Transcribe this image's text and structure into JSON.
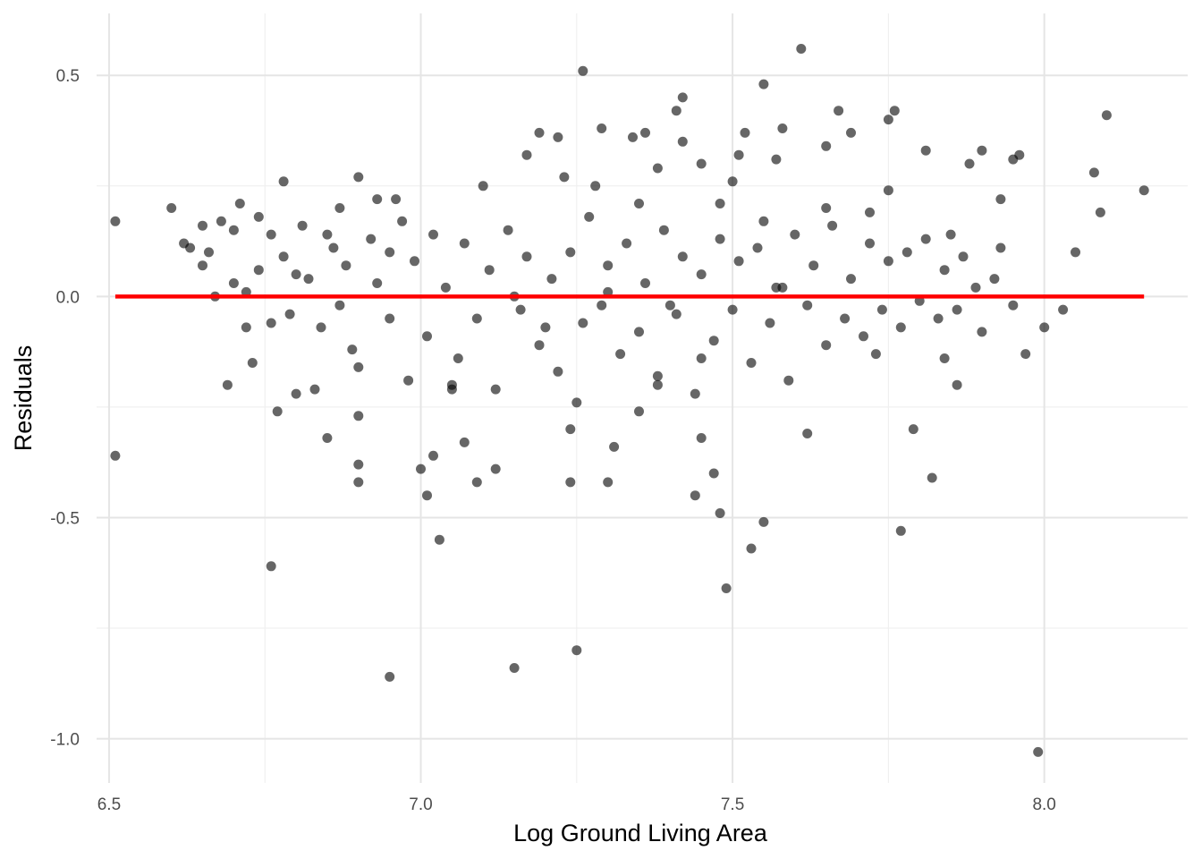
{
  "chart_data": {
    "type": "scatter",
    "title": "",
    "xlabel": "Log Ground Living Area",
    "ylabel": "Residuals",
    "xlim": [
      6.48,
      8.23
    ],
    "ylim": [
      -1.1,
      0.64
    ],
    "x_ticks": [
      6.5,
      7.0,
      7.5,
      8.0
    ],
    "x_tick_labels": [
      "6.5",
      "7.0",
      "7.5",
      "8.0"
    ],
    "y_ticks": [
      -1.0,
      -0.5,
      0.0,
      0.5
    ],
    "y_tick_labels": [
      "-1.0",
      "-0.5",
      "0.0",
      "0.5"
    ],
    "grid": true,
    "legend": "none",
    "point_color": "#000000",
    "point_opacity": 0.6,
    "reference_line": {
      "y": 0.0,
      "x_range": [
        6.51,
        8.16
      ],
      "color": "#ff0000"
    },
    "series": [
      {
        "points": [
          [
            6.51,
            0.17
          ],
          [
            6.51,
            -0.36
          ],
          [
            6.6,
            0.2
          ],
          [
            6.63,
            0.11
          ],
          [
            6.65,
            0.16
          ],
          [
            6.65,
            0.07
          ],
          [
            6.67,
            0.0
          ],
          [
            6.69,
            -0.2
          ],
          [
            6.7,
            0.15
          ],
          [
            6.71,
            0.21
          ],
          [
            6.72,
            -0.07
          ],
          [
            6.73,
            -0.15
          ],
          [
            6.74,
            0.18
          ],
          [
            6.76,
            -0.61
          ],
          [
            6.77,
            -0.26
          ],
          [
            6.78,
            0.26
          ],
          [
            6.8,
            -0.22
          ],
          [
            6.83,
            -0.21
          ],
          [
            6.85,
            -0.32
          ],
          [
            6.87,
            0.2
          ],
          [
            6.89,
            -0.12
          ],
          [
            6.9,
            0.27
          ],
          [
            6.9,
            -0.27
          ],
          [
            6.9,
            -0.38
          ],
          [
            6.9,
            -0.42
          ],
          [
            6.93,
            0.22
          ],
          [
            6.95,
            -0.86
          ],
          [
            6.96,
            0.22
          ],
          [
            6.98,
            -0.19
          ],
          [
            7.0,
            -0.39
          ],
          [
            7.01,
            -0.45
          ],
          [
            7.02,
            -0.36
          ],
          [
            7.03,
            -0.55
          ],
          [
            7.05,
            -0.21
          ],
          [
            7.07,
            -0.33
          ],
          [
            7.09,
            -0.42
          ],
          [
            7.1,
            0.25
          ],
          [
            7.12,
            -0.39
          ],
          [
            7.15,
            -0.84
          ],
          [
            7.17,
            0.32
          ],
          [
            7.19,
            0.37
          ],
          [
            7.22,
            0.36
          ],
          [
            7.23,
            0.27
          ],
          [
            7.24,
            -0.3
          ],
          [
            7.24,
            -0.42
          ],
          [
            7.25,
            -0.8
          ],
          [
            7.26,
            0.51
          ],
          [
            7.29,
            0.38
          ],
          [
            7.3,
            -0.42
          ],
          [
            7.31,
            -0.34
          ],
          [
            7.34,
            0.36
          ],
          [
            7.36,
            0.37
          ],
          [
            7.38,
            0.29
          ],
          [
            7.41,
            0.42
          ],
          [
            7.42,
            0.35
          ],
          [
            7.42,
            0.45
          ],
          [
            7.44,
            -0.45
          ],
          [
            7.45,
            0.3
          ],
          [
            7.47,
            -0.4
          ],
          [
            7.48,
            -0.49
          ],
          [
            7.49,
            -0.66
          ],
          [
            7.5,
            0.26
          ],
          [
            7.51,
            0.32
          ],
          [
            7.52,
            0.37
          ],
          [
            7.53,
            -0.57
          ],
          [
            7.55,
            -0.51
          ],
          [
            7.55,
            0.48
          ],
          [
            7.57,
            0.31
          ],
          [
            7.58,
            0.38
          ],
          [
            7.61,
            0.56
          ],
          [
            7.62,
            -0.31
          ],
          [
            7.65,
            0.34
          ],
          [
            7.67,
            0.42
          ],
          [
            7.69,
            0.37
          ],
          [
            7.72,
            0.19
          ],
          [
            7.73,
            -0.13
          ],
          [
            7.75,
            0.4
          ],
          [
            7.76,
            0.42
          ],
          [
            7.77,
            -0.53
          ],
          [
            7.79,
            -0.3
          ],
          [
            7.81,
            0.33
          ],
          [
            7.82,
            -0.41
          ],
          [
            7.84,
            -0.14
          ],
          [
            7.86,
            -0.2
          ],
          [
            7.88,
            0.3
          ],
          [
            7.9,
            0.33
          ],
          [
            7.93,
            0.22
          ],
          [
            7.95,
            0.31
          ],
          [
            7.96,
            0.32
          ],
          [
            7.97,
            -0.13
          ],
          [
            7.99,
            -1.03
          ],
          [
            8.0,
            -0.07
          ],
          [
            8.03,
            -0.03
          ],
          [
            8.05,
            0.1
          ],
          [
            8.08,
            0.28
          ],
          [
            8.09,
            0.19
          ],
          [
            8.1,
            0.41
          ],
          [
            8.16,
            0.24
          ],
          [
            6.62,
            0.12
          ],
          [
            6.66,
            0.1
          ],
          [
            6.68,
            0.17
          ],
          [
            6.7,
            0.03
          ],
          [
            6.72,
            0.01
          ],
          [
            6.74,
            0.06
          ],
          [
            6.76,
            0.14
          ],
          [
            6.76,
            -0.06
          ],
          [
            6.78,
            0.09
          ],
          [
            6.79,
            -0.04
          ],
          [
            6.81,
            0.16
          ],
          [
            6.82,
            0.04
          ],
          [
            6.84,
            -0.07
          ],
          [
            6.86,
            0.11
          ],
          [
            6.87,
            -0.02
          ],
          [
            6.88,
            0.07
          ],
          [
            6.9,
            -0.16
          ],
          [
            6.92,
            0.13
          ],
          [
            6.93,
            0.03
          ],
          [
            6.95,
            -0.05
          ],
          [
            6.97,
            0.17
          ],
          [
            6.99,
            0.08
          ],
          [
            7.01,
            -0.09
          ],
          [
            7.02,
            0.14
          ],
          [
            7.04,
            0.02
          ],
          [
            7.06,
            -0.14
          ],
          [
            7.07,
            0.12
          ],
          [
            7.09,
            -0.05
          ],
          [
            7.11,
            0.06
          ],
          [
            7.12,
            -0.21
          ],
          [
            7.14,
            0.15
          ],
          [
            7.16,
            -0.03
          ],
          [
            7.17,
            0.09
          ],
          [
            7.19,
            -0.11
          ],
          [
            7.21,
            0.04
          ],
          [
            7.22,
            -0.17
          ],
          [
            7.24,
            0.1
          ],
          [
            7.26,
            -0.06
          ],
          [
            7.27,
            0.18
          ],
          [
            7.29,
            -0.02
          ],
          [
            7.3,
            0.07
          ],
          [
            7.32,
            -0.13
          ],
          [
            7.33,
            0.12
          ],
          [
            7.35,
            -0.08
          ],
          [
            7.36,
            0.03
          ],
          [
            7.38,
            -0.18
          ],
          [
            7.39,
            0.15
          ],
          [
            7.41,
            -0.04
          ],
          [
            7.42,
            0.09
          ],
          [
            7.44,
            -0.22
          ],
          [
            7.45,
            0.05
          ],
          [
            7.47,
            -0.1
          ],
          [
            7.48,
            0.13
          ],
          [
            7.5,
            -0.03
          ],
          [
            7.51,
            0.08
          ],
          [
            7.53,
            -0.15
          ],
          [
            7.54,
            0.11
          ],
          [
            7.56,
            -0.06
          ],
          [
            7.57,
            0.02
          ],
          [
            7.59,
            -0.19
          ],
          [
            7.6,
            0.14
          ],
          [
            7.62,
            -0.02
          ],
          [
            7.63,
            0.07
          ],
          [
            7.65,
            -0.11
          ],
          [
            7.66,
            0.16
          ],
          [
            7.68,
            -0.05
          ],
          [
            7.69,
            0.04
          ],
          [
            7.71,
            -0.09
          ],
          [
            7.72,
            0.12
          ],
          [
            7.74,
            -0.03
          ],
          [
            7.75,
            0.08
          ],
          [
            7.77,
            -0.07
          ],
          [
            7.78,
            0.1
          ],
          [
            7.8,
            -0.01
          ],
          [
            7.81,
            0.13
          ],
          [
            7.83,
            -0.05
          ],
          [
            7.84,
            0.06
          ],
          [
            7.86,
            -0.03
          ],
          [
            7.87,
            0.09
          ],
          [
            7.89,
            0.02
          ],
          [
            7.9,
            -0.08
          ],
          [
            7.92,
            0.04
          ],
          [
            7.93,
            0.11
          ],
          [
            7.95,
            -0.02
          ],
          [
            6.8,
            0.05
          ],
          [
            6.85,
            0.14
          ],
          [
            6.95,
            0.1
          ],
          [
            7.05,
            -0.2
          ],
          [
            7.15,
            0.0
          ],
          [
            7.25,
            -0.24
          ],
          [
            7.35,
            -0.26
          ],
          [
            7.45,
            -0.32
          ],
          [
            7.55,
            0.17
          ],
          [
            7.65,
            0.2
          ],
          [
            7.75,
            0.24
          ],
          [
            7.85,
            0.14
          ],
          [
            7.4,
            -0.02
          ],
          [
            7.3,
            0.01
          ],
          [
            7.2,
            -0.07
          ],
          [
            7.35,
            0.21
          ],
          [
            7.45,
            -0.14
          ],
          [
            7.28,
            0.25
          ],
          [
            7.38,
            -0.2
          ],
          [
            7.48,
            0.21
          ],
          [
            7.58,
            0.02
          ]
        ]
      }
    ]
  }
}
